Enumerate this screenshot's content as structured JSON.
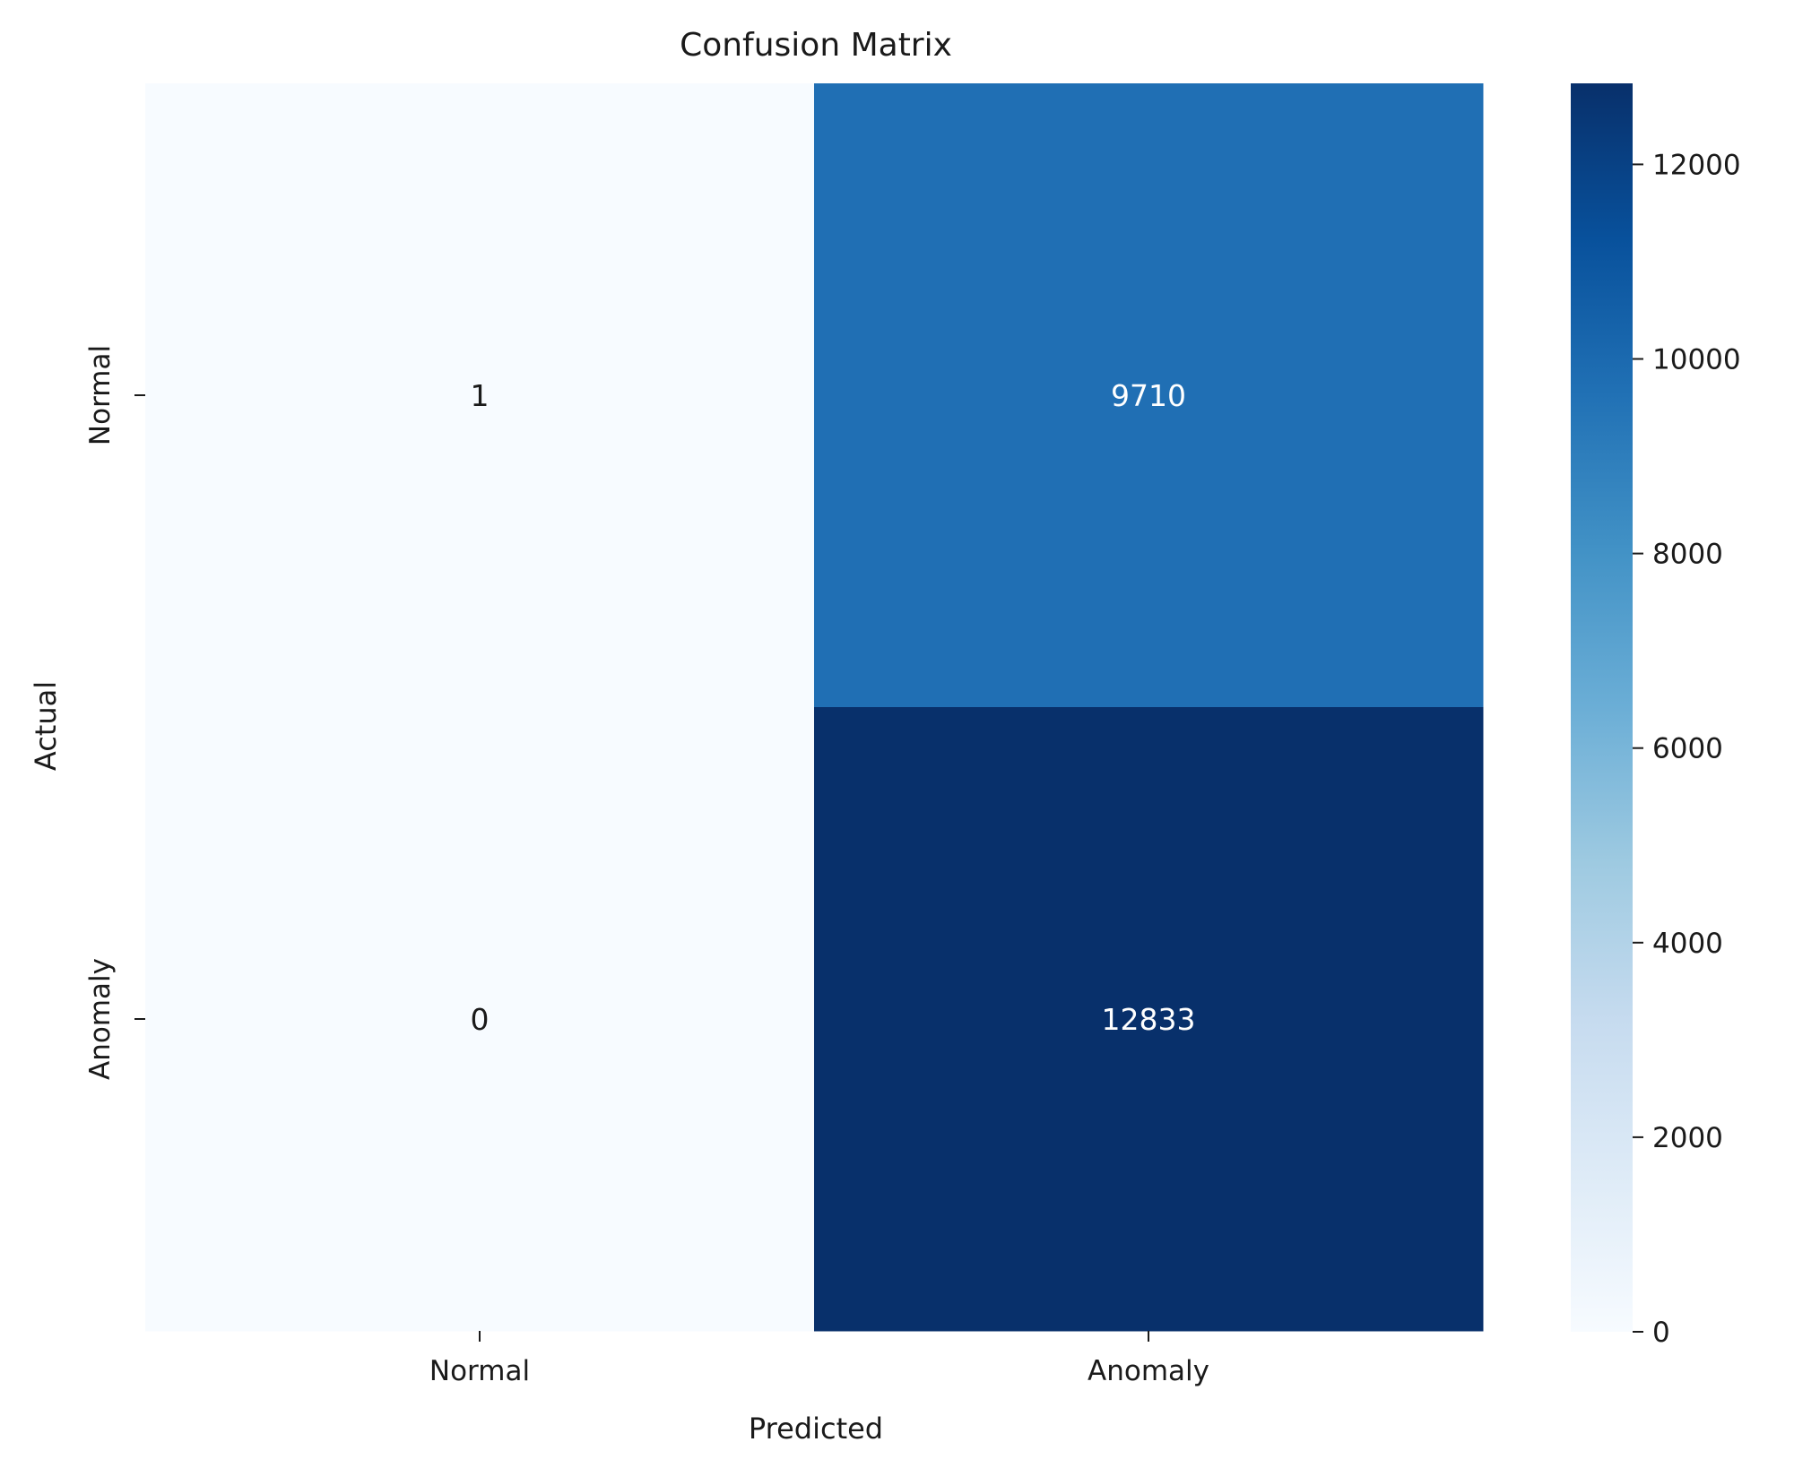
{
  "chart_data": {
    "type": "heatmap",
    "title": "Confusion Matrix",
    "xlabel": "Predicted",
    "ylabel": "Actual",
    "x_categories": [
      "Normal",
      "Anomaly"
    ],
    "y_categories": [
      "Normal",
      "Anomaly"
    ],
    "values": [
      [
        1,
        9710
      ],
      [
        0,
        12833
      ]
    ],
    "colormap": "Blues",
    "colorbar": {
      "range": [
        0,
        12833
      ],
      "ticks": [
        0,
        2000,
        4000,
        6000,
        8000,
        10000,
        12000
      ]
    },
    "colors": {
      "low": "#f7fbff",
      "mid": "#2171b5",
      "high": "#08306b"
    }
  }
}
